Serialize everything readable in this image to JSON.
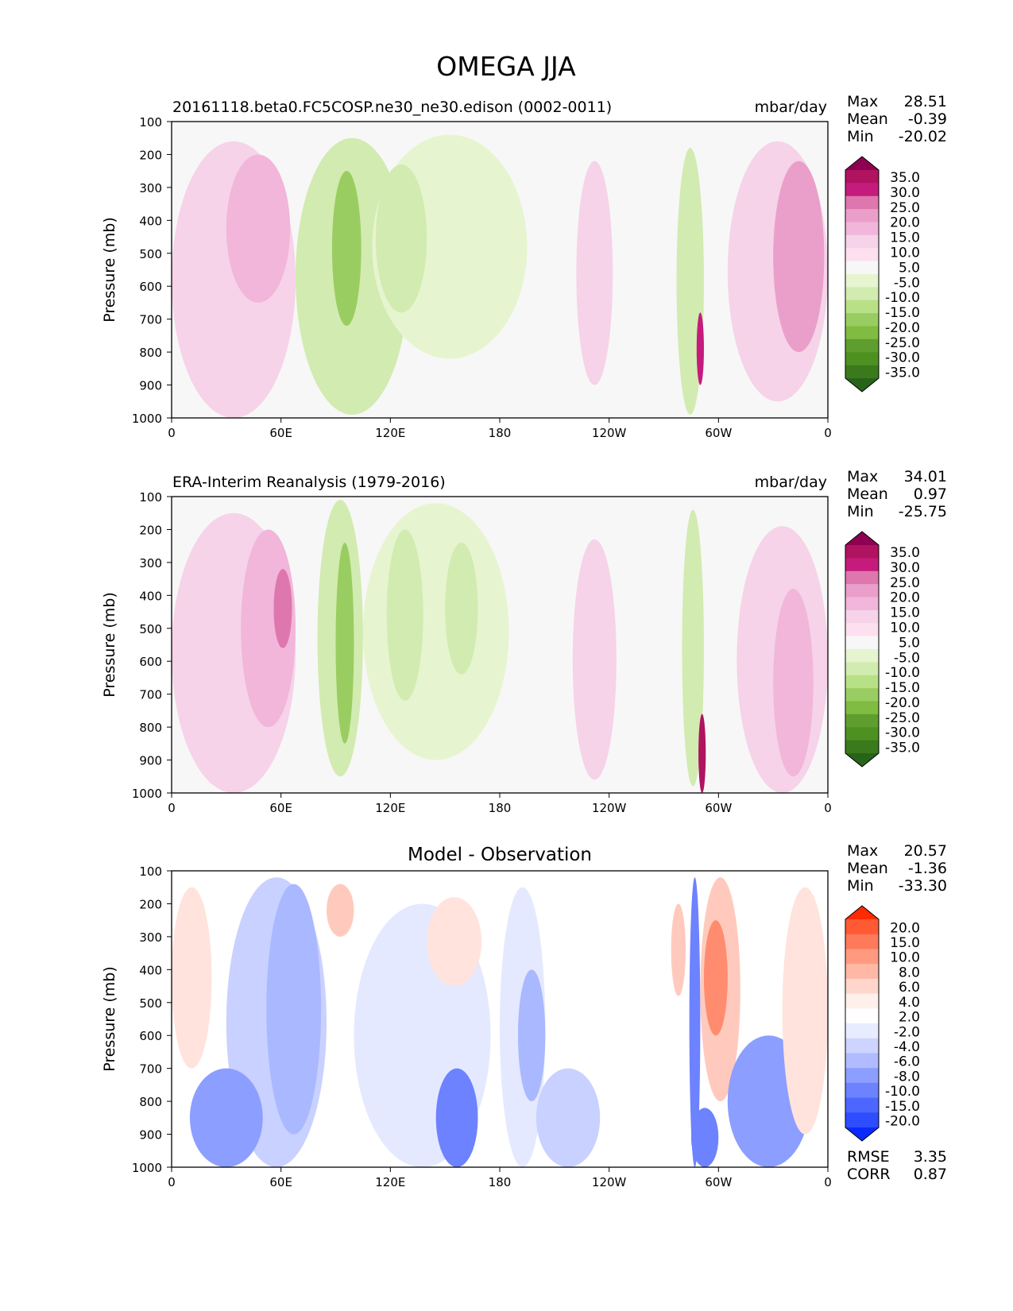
{
  "figure_title": "OMEGA JJA",
  "colors": {
    "plot_background": "#f7f7f7",
    "diff_background": "#ffffff",
    "frame": "#000000"
  },
  "omega_colorbar": {
    "labels": [
      "35.0",
      "30.0",
      "25.0",
      "20.0",
      "15.0",
      "10.0",
      "5.0",
      "-5.0",
      "-10.0",
      "-15.0",
      "-20.0",
      "-25.0",
      "-30.0",
      "-35.0"
    ],
    "colors": [
      "#8e0152",
      "#b0135f",
      "#c51b7d",
      "#de77ae",
      "#ea9fcb",
      "#f1b6da",
      "#f6d3e8",
      "#fde0ef",
      "#f7f7f7",
      "#e6f5d0",
      "#d2ebb0",
      "#b8e186",
      "#9acd61",
      "#7fbc41",
      "#5e9e2e",
      "#4d9221",
      "#3a7a1c",
      "#276419"
    ]
  },
  "diff_colorbar": {
    "labels": [
      "20.0",
      "15.0",
      "10.0",
      "8.0",
      "6.0",
      "4.0",
      "2.0",
      "-2.0",
      "-4.0",
      "-6.0",
      "-8.0",
      "-10.0",
      "-15.0",
      "-20.0"
    ],
    "colors": [
      "#ff2a00",
      "#ff5a33",
      "#ff7a5a",
      "#ff9a80",
      "#ffb8a6",
      "#ffd6cc",
      "#fff0ec",
      "#ffffff",
      "#e8ecff",
      "#ccd4ff",
      "#b0bcff",
      "#8c9eff",
      "#6d82ff",
      "#4d66ff",
      "#2e4dff",
      "#0a2aff"
    ]
  },
  "chart_data": [
    {
      "type": "heatmap",
      "title_left": "20161118.beta0.FC5COSP.ne30_ne30.edison (0002-0011)",
      "title_right": "mbar/day",
      "title_center": "",
      "ylabel": "Pressure (mb)",
      "yticks": [
        "100",
        "200",
        "300",
        "400",
        "500",
        "600",
        "700",
        "800",
        "900",
        "1000"
      ],
      "xticks": [
        "0",
        "60E",
        "120E",
        "180",
        "120W",
        "60W",
        "0"
      ],
      "ylim": [
        100,
        1000
      ],
      "xlim": [
        0,
        360
      ],
      "stats_labels": [
        "Max",
        "Mean",
        "Min"
      ],
      "stats_values": [
        "28.51",
        "-0.39",
        "-20.02"
      ],
      "units": "mbar/day",
      "regions": [
        {
          "lon": [
            0,
            68
          ],
          "p": [
            160,
            1000
          ],
          "value": 7
        },
        {
          "lon": [
            30,
            65
          ],
          "p": [
            200,
            650
          ],
          "value": 12
        },
        {
          "lon": [
            68,
            130
          ],
          "p": [
            150,
            990
          ],
          "value": -12
        },
        {
          "lon": [
            88,
            104
          ],
          "p": [
            250,
            720
          ],
          "value": -22
        },
        {
          "lon": [
            110,
            195
          ],
          "p": [
            140,
            820
          ],
          "value": -7
        },
        {
          "lon": [
            112,
            140
          ],
          "p": [
            230,
            680
          ],
          "value": -14
        },
        {
          "lon": [
            222,
            242
          ],
          "p": [
            220,
            900
          ],
          "value": 8
        },
        {
          "lon": [
            277,
            292
          ],
          "p": [
            180,
            990
          ],
          "value": -14
        },
        {
          "lon": [
            288,
            292
          ],
          "p": [
            680,
            900
          ],
          "value": 28
        },
        {
          "lon": [
            305,
            360
          ],
          "p": [
            160,
            950
          ],
          "value": 9
        },
        {
          "lon": [
            330,
            358
          ],
          "p": [
            220,
            800
          ],
          "value": 16
        }
      ]
    },
    {
      "type": "heatmap",
      "title_left": "ERA-Interim Reanalysis (1979-2016)",
      "title_right": "mbar/day",
      "title_center": "",
      "ylabel": "Pressure (mb)",
      "yticks": [
        "100",
        "200",
        "300",
        "400",
        "500",
        "600",
        "700",
        "800",
        "900",
        "1000"
      ],
      "xticks": [
        "0",
        "60E",
        "120E",
        "180",
        "120W",
        "60W",
        "0"
      ],
      "ylim": [
        100,
        1000
      ],
      "xlim": [
        0,
        360
      ],
      "stats_labels": [
        "Max",
        "Mean",
        "Min"
      ],
      "stats_values": [
        "34.01",
        "0.97",
        "-25.75"
      ],
      "units": "mbar/day",
      "regions": [
        {
          "lon": [
            0,
            68
          ],
          "p": [
            150,
            1000
          ],
          "value": 7
        },
        {
          "lon": [
            38,
            68
          ],
          "p": [
            200,
            800
          ],
          "value": 13
        },
        {
          "lon": [
            56,
            66
          ],
          "p": [
            320,
            560
          ],
          "value": 20
        },
        {
          "lon": [
            80,
            105
          ],
          "p": [
            110,
            950
          ],
          "value": -12
        },
        {
          "lon": [
            90,
            100
          ],
          "p": [
            240,
            850
          ],
          "value": -22
        },
        {
          "lon": [
            105,
            185
          ],
          "p": [
            120,
            900
          ],
          "value": -7
        },
        {
          "lon": [
            118,
            138
          ],
          "p": [
            200,
            720
          ],
          "value": -14
        },
        {
          "lon": [
            150,
            168
          ],
          "p": [
            240,
            640
          ],
          "value": -14
        },
        {
          "lon": [
            220,
            244
          ],
          "p": [
            230,
            960
          ],
          "value": 8
        },
        {
          "lon": [
            280,
            292
          ],
          "p": [
            140,
            980
          ],
          "value": -12
        },
        {
          "lon": [
            289,
            293
          ],
          "p": [
            760,
            1000
          ],
          "value": 30
        },
        {
          "lon": [
            310,
            360
          ],
          "p": [
            190,
            1000
          ],
          "value": 9
        },
        {
          "lon": [
            330,
            352
          ],
          "p": [
            380,
            950
          ],
          "value": 14
        }
      ]
    },
    {
      "type": "heatmap",
      "title_left": "",
      "title_right": "",
      "title_center": "Model - Observation",
      "ylabel": "Pressure (mb)",
      "yticks": [
        "100",
        "200",
        "300",
        "400",
        "500",
        "600",
        "700",
        "800",
        "900",
        "1000"
      ],
      "xticks": [
        "0",
        "60E",
        "120E",
        "180",
        "120W",
        "60W",
        "0"
      ],
      "ylim": [
        100,
        1000
      ],
      "xlim": [
        0,
        360
      ],
      "stats_labels": [
        "Max",
        "Mean",
        "Min"
      ],
      "stats_values": [
        "20.57",
        "-1.36",
        "-33.30"
      ],
      "extra_stats_labels": [
        "RMSE",
        "CORR"
      ],
      "extra_stats_values": [
        "3.35",
        "0.87"
      ],
      "units": "mbar/day",
      "regions": [
        {
          "lon": [
            0,
            22
          ],
          "p": [
            150,
            700
          ],
          "value": 3
        },
        {
          "lon": [
            30,
            85
          ],
          "p": [
            120,
            1000
          ],
          "value": -4
        },
        {
          "lon": [
            52,
            82
          ],
          "p": [
            140,
            900
          ],
          "value": -7
        },
        {
          "lon": [
            10,
            50
          ],
          "p": [
            700,
            1000
          ],
          "value": -9
        },
        {
          "lon": [
            85,
            100
          ],
          "p": [
            140,
            300
          ],
          "value": 4
        },
        {
          "lon": [
            100,
            175
          ],
          "p": [
            200,
            1000
          ],
          "value": -3
        },
        {
          "lon": [
            145,
            168
          ],
          "p": [
            700,
            1000
          ],
          "value": -14
        },
        {
          "lon": [
            140,
            170
          ],
          "p": [
            180,
            450
          ],
          "value": 3
        },
        {
          "lon": [
            180,
            205
          ],
          "p": [
            150,
            1000
          ],
          "value": -3
        },
        {
          "lon": [
            190,
            205
          ],
          "p": [
            400,
            800
          ],
          "value": -6
        },
        {
          "lon": [
            200,
            235
          ],
          "p": [
            700,
            1000
          ],
          "value": -4
        },
        {
          "lon": [
            274,
            282
          ],
          "p": [
            200,
            480
          ],
          "value": 4
        },
        {
          "lon": [
            284,
            290
          ],
          "p": [
            120,
            1000
          ],
          "value": -14
        },
        {
          "lon": [
            290,
            312
          ],
          "p": [
            120,
            800
          ],
          "value": 5
        },
        {
          "lon": [
            292,
            305
          ],
          "p": [
            250,
            600
          ],
          "value": 9
        },
        {
          "lon": [
            285,
            300
          ],
          "p": [
            820,
            1000
          ],
          "value": -12
        },
        {
          "lon": [
            305,
            350
          ],
          "p": [
            600,
            1000
          ],
          "value": -8
        },
        {
          "lon": [
            335,
            360
          ],
          "p": [
            150,
            900
          ],
          "value": 3
        }
      ]
    }
  ]
}
